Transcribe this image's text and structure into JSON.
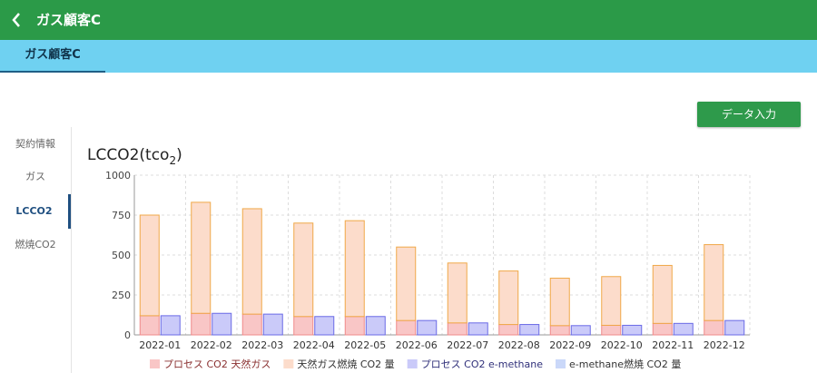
{
  "header": {
    "title": "ガス顧客C"
  },
  "tabs": [
    "ガス顧客C"
  ],
  "button": "データ入力",
  "sidebar": [
    "契約情報",
    "ガス",
    "LCCO2",
    "燃焼CO2"
  ],
  "chart_data": {
    "type": "bar",
    "title": {
      "main": "LCCO2(tco",
      "subscript": "2",
      "close": ")"
    },
    "categories": [
      "2022-01",
      "2022-02",
      "2022-03",
      "2022-04",
      "2022-05",
      "2022-06",
      "2022-07",
      "2022-08",
      "2022-09",
      "2022-10",
      "2022-11",
      "2022-12"
    ],
    "series": [
      {
        "name": "プロセス CO2 天然ガス",
        "color": "#f9c6c6",
        "stroke": "#f08a8a",
        "values": [
          120,
          135,
          130,
          115,
          115,
          90,
          75,
          65,
          58,
          60,
          72,
          90
        ]
      },
      {
        "name": "天然ガス燃焼 CO2 量",
        "color": "#fcdccb",
        "stroke": "#f0a848",
        "values": [
          630,
          695,
          660,
          585,
          600,
          460,
          375,
          335,
          297,
          305,
          363,
          475
        ]
      },
      {
        "name": "プロセス CO2 e-methane",
        "color": "#cacaf9",
        "stroke": "#6a6ae6",
        "values": [
          120,
          135,
          130,
          115,
          115,
          90,
          75,
          65,
          58,
          60,
          72,
          90
        ]
      },
      {
        "name": "e-methane燃焼 CO2 量",
        "color": "#cad8f9",
        "stroke": "#8aa8ee",
        "values": [
          0,
          0,
          0,
          0,
          0,
          0,
          0,
          0,
          0,
          0,
          0,
          0
        ]
      }
    ],
    "ylim": [
      0,
      1000
    ],
    "yticks": [
      0,
      250,
      500,
      750,
      1000
    ],
    "grid": true
  }
}
